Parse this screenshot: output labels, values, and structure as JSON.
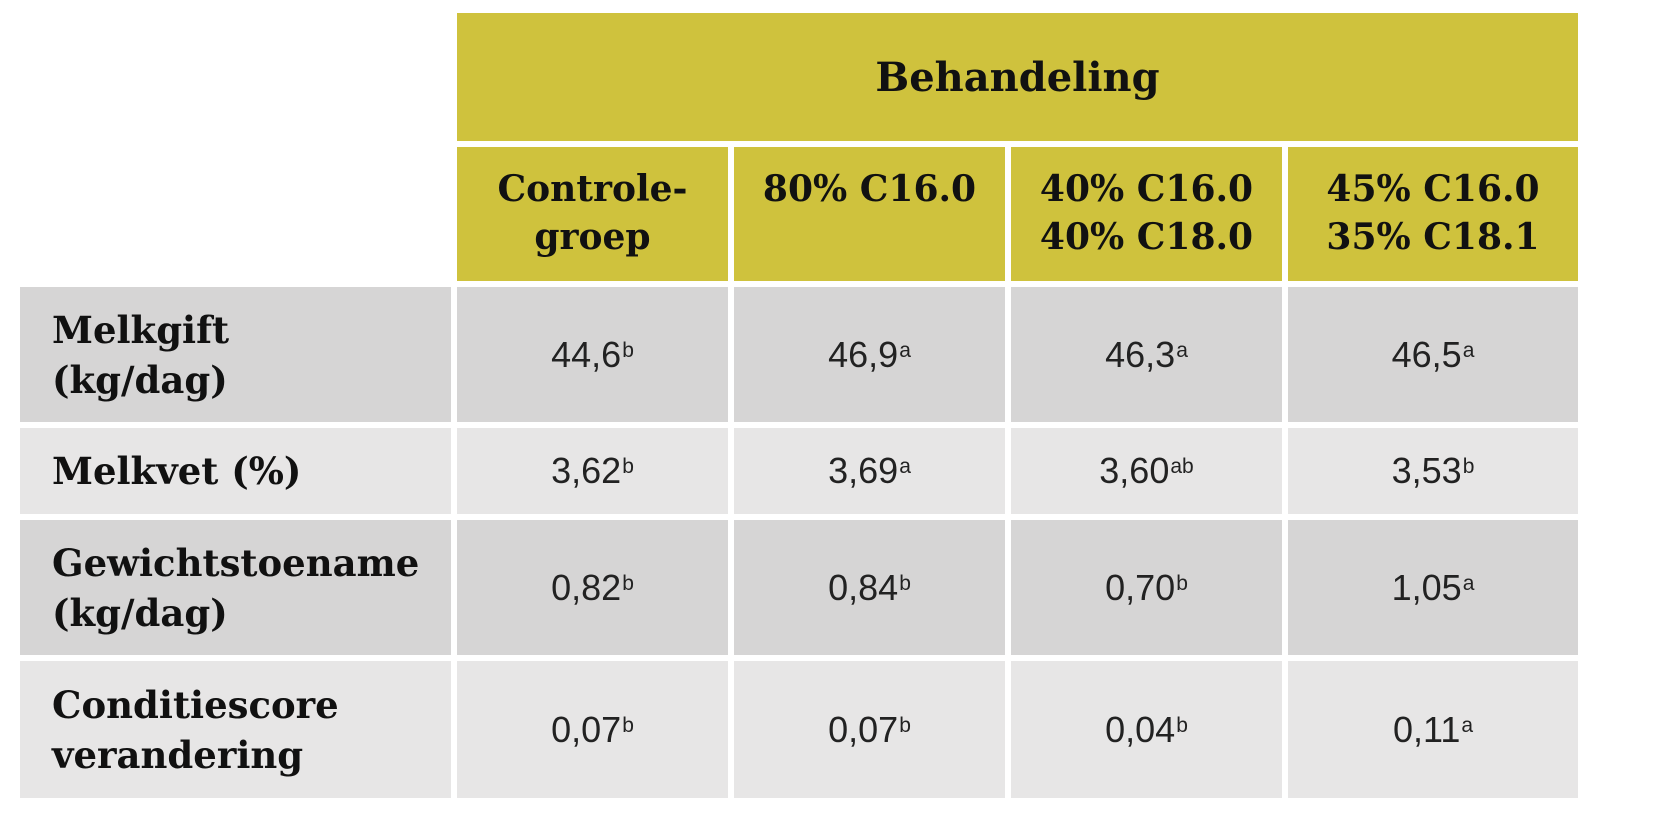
{
  "header": {
    "title": "Behandeling",
    "columns": [
      "Controle-\ngroep",
      "80% C16.0",
      "40% C16.0\n40% C18.0",
      "45% C16.0\n35% C18.1"
    ]
  },
  "rows": [
    {
      "label": "Melkgift\n(kg/dag)",
      "values": [
        {
          "v": "44,6",
          "s": "b"
        },
        {
          "v": "46,9",
          "s": "a"
        },
        {
          "v": "46,3",
          "s": "a"
        },
        {
          "v": "46,5",
          "s": "a"
        }
      ]
    },
    {
      "label": "Melkvet (%)",
      "values": [
        {
          "v": "3,62",
          "s": "b"
        },
        {
          "v": "3,69",
          "s": "a"
        },
        {
          "v": "3,60",
          "s": "ab"
        },
        {
          "v": "3,53",
          "s": "b"
        }
      ]
    },
    {
      "label": "Gewichtstoename\n(kg/dag)",
      "values": [
        {
          "v": "0,82",
          "s": "b"
        },
        {
          "v": "0,84",
          "s": "b"
        },
        {
          "v": "0,70",
          "s": "b"
        },
        {
          "v": "1,05",
          "s": "a"
        }
      ]
    },
    {
      "label": "Conditiescore\nverandering",
      "values": [
        {
          "v": "0,07",
          "s": "b"
        },
        {
          "v": "0,07",
          "s": "b"
        },
        {
          "v": "0,04",
          "s": "b"
        },
        {
          "v": "0,11",
          "s": "a"
        }
      ]
    }
  ],
  "colors": {
    "header_bg": "#cfc23d",
    "row_dark": "#d6d5d5",
    "row_light": "#e7e6e6"
  }
}
